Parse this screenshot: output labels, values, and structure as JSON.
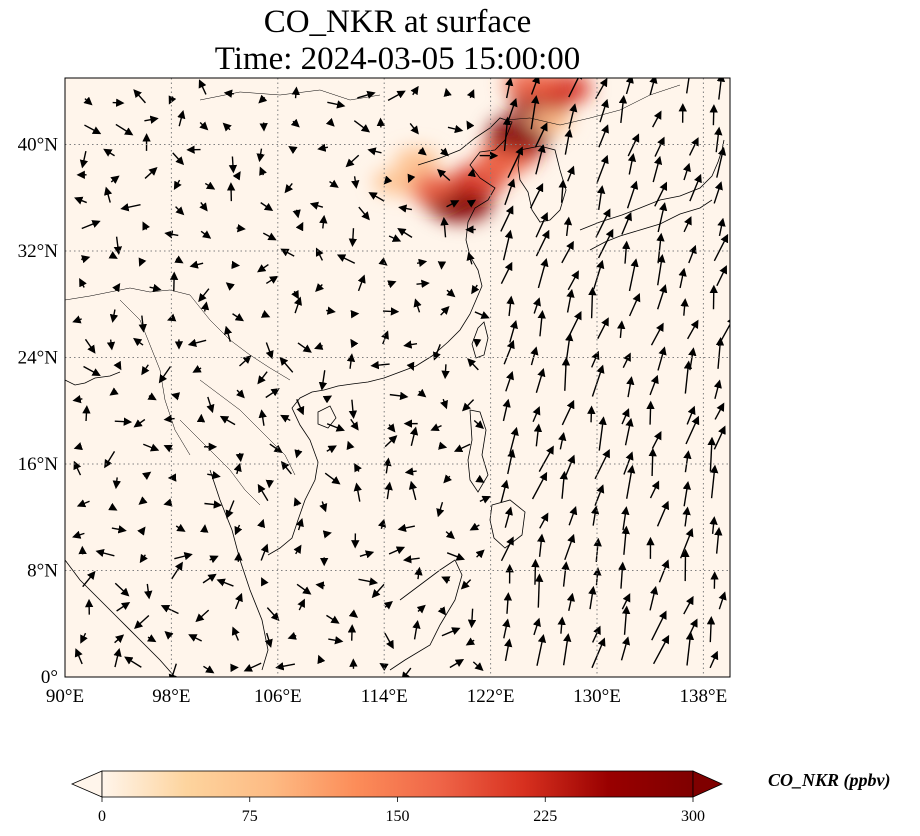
{
  "title": {
    "line1": "CO_NKR at surface",
    "line2": "Time: 2024-03-05 15:00:00"
  },
  "map": {
    "projection": "PlateCarree",
    "lon_range": [
      90,
      140
    ],
    "lat_range": [
      0,
      45
    ],
    "gridlines": "dotted gray",
    "lon_ticks": [
      {
        "value": 90,
        "label": "90°E"
      },
      {
        "value": 98,
        "label": "98°E"
      },
      {
        "value": 106,
        "label": "106°E"
      },
      {
        "value": 114,
        "label": "114°E"
      },
      {
        "value": 122,
        "label": "122°E"
      },
      {
        "value": 130,
        "label": "130°E"
      },
      {
        "value": 138,
        "label": "138°E"
      }
    ],
    "lat_ticks": [
      {
        "value": 0,
        "label": "0°"
      },
      {
        "value": 8,
        "label": "8°N"
      },
      {
        "value": 16,
        "label": "16°N"
      },
      {
        "value": 24,
        "label": "24°N"
      },
      {
        "value": 32,
        "label": "32°N"
      },
      {
        "value": 40,
        "label": "40°N"
      }
    ],
    "background_color": "#fff5eb",
    "concentration_hotspots": [
      {
        "lon": 119.0,
        "lat": 36.0,
        "level": 240
      },
      {
        "lon": 119.8,
        "lat": 35.6,
        "level": 280
      },
      {
        "lon": 117.5,
        "lat": 36.8,
        "level": 170
      },
      {
        "lon": 121.2,
        "lat": 37.4,
        "level": 200
      },
      {
        "lon": 123.6,
        "lat": 39.5,
        "level": 230
      },
      {
        "lon": 124.2,
        "lat": 40.8,
        "level": 290
      },
      {
        "lon": 122.8,
        "lat": 38.6,
        "level": 150
      },
      {
        "lon": 125.8,
        "lat": 43.2,
        "level": 250
      },
      {
        "lon": 127.5,
        "lat": 44.2,
        "level": 200
      },
      {
        "lon": 125.0,
        "lat": 44.6,
        "level": 180
      },
      {
        "lon": 116.5,
        "lat": 38.8,
        "level": 90
      },
      {
        "lon": 114.8,
        "lat": 37.2,
        "level": 70
      },
      {
        "lon": 126.5,
        "lat": 41.8,
        "level": 80
      }
    ]
  },
  "colorbar": {
    "label": "CO_NKR (ppbv)",
    "min": 0,
    "max": 300,
    "extend": "both",
    "colormap": "OrRd",
    "colors": [
      "#fff5eb",
      "#fdd49e",
      "#fdbb84",
      "#fc8d59",
      "#ef6548",
      "#d7301f",
      "#990000",
      "#7f0000"
    ],
    "ticks": [
      "0",
      "75",
      "150",
      "225",
      "300"
    ]
  }
}
